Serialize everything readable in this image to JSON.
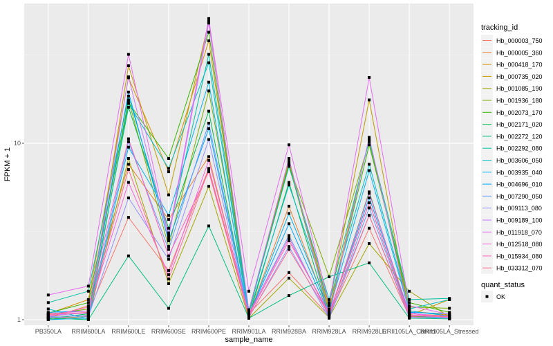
{
  "chart_data": {
    "type": "line",
    "title": "",
    "xlabel": "sample_name",
    "ylabel": "FPKM + 1",
    "y_scale": "log10",
    "ylim": [
      0.93,
      62
    ],
    "y_ticks": [
      {
        "value": 1,
        "label": "1"
      },
      {
        "value": 10,
        "label": "10"
      }
    ],
    "grid": true,
    "categories": [
      "PB350LA",
      "RRIM600LA",
      "RRIM600LE",
      "RRIM600SE",
      "RRIM600PE",
      "RRIM901LA",
      "RRIM928BA",
      "RRIM928LA",
      "RRIM928LE",
      "RRII105LA_Control",
      "RRII105LA_Stressed"
    ],
    "legend": {
      "position": "right",
      "color_title": "tracking_id",
      "shape_title": "quant_status",
      "shape_entries": [
        {
          "label": "OK",
          "shape": "square"
        }
      ]
    },
    "series": [
      {
        "name": "Hb_000003_750",
        "color": "#F8766D",
        "values": [
          1.05,
          1.1,
          3.8,
          1.9,
          7.2,
          1.08,
          1.85,
          1.05,
          3.3,
          1.04,
          1.03
        ]
      },
      {
        "name": "Hb_000005_360",
        "color": "#EA8331",
        "values": [
          1.02,
          1.2,
          7.6,
          3.7,
          8.4,
          1.05,
          4.4,
          1.08,
          4.6,
          1.08,
          1.05
        ]
      },
      {
        "name": "Hb_000418_170",
        "color": "#D89000",
        "values": [
          1.08,
          1.3,
          23.5,
          6.9,
          38.1,
          1.12,
          7.9,
          1.15,
          10.6,
          1.12,
          1.06
        ]
      },
      {
        "name": "Hb_000735_020",
        "color": "#C09B00",
        "values": [
          1.0,
          1.05,
          27.5,
          5.1,
          49.1,
          1.1,
          7.8,
          1.2,
          17.6,
          1.06,
          1.3
        ]
      },
      {
        "name": "Hb_001085_190",
        "color": "#A3A500",
        "values": [
          1.03,
          1.02,
          8.2,
          1.6,
          5.7,
          1.02,
          1.72,
          1.03,
          2.7,
          1.45,
          1.04
        ]
      },
      {
        "name": "Hb_001936_180",
        "color": "#7CAE00",
        "values": [
          1.07,
          1.15,
          17.6,
          2.6,
          19.8,
          1.14,
          7.5,
          1.75,
          10.2,
          1.18,
          1.16
        ]
      },
      {
        "name": "Hb_002073_170",
        "color": "#39B600",
        "values": [
          1.09,
          1.25,
          17.0,
          8.2,
          42.6,
          1.11,
          7.6,
          1.1,
          9.8,
          1.25,
          1.1
        ]
      },
      {
        "name": "Hb_002171_020",
        "color": "#00BB4E",
        "values": [
          1.01,
          1.08,
          16.0,
          3.3,
          15.2,
          1.04,
          6.0,
          1.06,
          5.3,
          1.05,
          1.02
        ]
      },
      {
        "name": "Hb_002272_120",
        "color": "#00BF7D",
        "values": [
          1.02,
          1.0,
          2.3,
          1.16,
          3.4,
          1.02,
          1.37,
          1.75,
          2.1,
          1.02,
          1.01
        ]
      },
      {
        "name": "Hb_002292_080",
        "color": "#00C1A3",
        "values": [
          1.25,
          1.45,
          18.5,
          3.1,
          31.9,
          1.12,
          7.4,
          1.3,
          10.4,
          1.3,
          1.32
        ]
      },
      {
        "name": "Hb_003606_050",
        "color": "#00BFC4",
        "values": [
          1.15,
          1.01,
          16.8,
          7.2,
          28.6,
          1.09,
          5.8,
          1.25,
          7.6,
          1.15,
          1.3
        ]
      },
      {
        "name": "Hb_003935_040",
        "color": "#00B4EF",
        "values": [
          1.0,
          1.02,
          9.5,
          3.9,
          22.2,
          1.05,
          4.0,
          1.12,
          7.0,
          1.12,
          1.05
        ]
      },
      {
        "name": "Hb_004696_010",
        "color": "#00A5FF",
        "values": [
          1.1,
          1.12,
          19.5,
          2.8,
          12.1,
          1.06,
          3.5,
          1.08,
          4.9,
          1.1,
          1.08
        ]
      },
      {
        "name": "Hb_007290_050",
        "color": "#619CFF",
        "values": [
          1.04,
          1.06,
          10.2,
          2.5,
          13.0,
          1.07,
          3.0,
          1.04,
          4.3,
          1.06,
          1.02
        ]
      },
      {
        "name": "Hb_009113_080",
        "color": "#9590FF",
        "values": [
          1.03,
          1.04,
          4.9,
          2.2,
          10.5,
          1.03,
          2.6,
          1.02,
          3.9,
          1.03,
          1.02
        ]
      },
      {
        "name": "Hb_009189_100",
        "color": "#C77CFF",
        "values": [
          1.06,
          1.09,
          23.8,
          2.9,
          48.0,
          1.13,
          8.2,
          1.05,
          10.8,
          1.09,
          1.03
        ]
      },
      {
        "name": "Hb_011918_070",
        "color": "#E76BF3",
        "values": [
          1.38,
          1.55,
          31.9,
          3.0,
          50.9,
          1.45,
          9.8,
          1.22,
          23.6,
          1.2,
          1.07
        ]
      },
      {
        "name": "Hb_012518_080",
        "color": "#FA62DB",
        "values": [
          1.08,
          1.12,
          6.0,
          1.8,
          8.0,
          1.08,
          2.9,
          1.06,
          5.2,
          1.08,
          1.04
        ]
      },
      {
        "name": "Hb_015934_080",
        "color": "#FF62BC",
        "values": [
          1.04,
          1.18,
          10.6,
          2.3,
          6.9,
          1.06,
          2.8,
          1.09,
          4.6,
          1.06,
          1.05
        ]
      },
      {
        "name": "Hb_033312_070",
        "color": "#FF6C91",
        "values": [
          1.07,
          1.1,
          7.1,
          1.7,
          7.1,
          1.04,
          2.5,
          1.07,
          3.9,
          1.05,
          1.04
        ]
      }
    ]
  }
}
